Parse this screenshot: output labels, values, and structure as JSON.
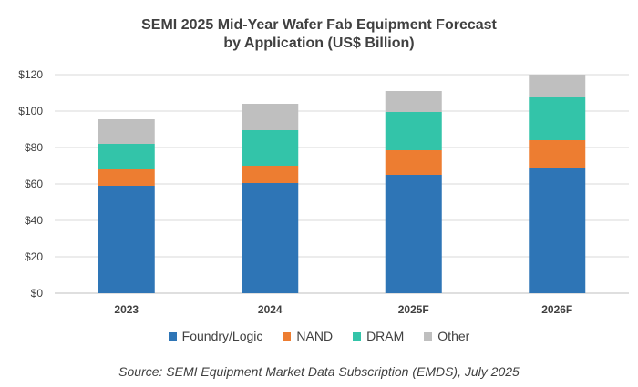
{
  "chart_data": {
    "type": "bar",
    "stacked": true,
    "title_lines": [
      "SEMI 2025 Mid-Year Wafer Fab Equipment Forecast",
      "by Application (US$ Billion)"
    ],
    "categories": [
      "2023",
      "2024",
      "2025F",
      "2026F"
    ],
    "series": [
      {
        "name": "Foundry/Logic",
        "color": "#2E75B6",
        "values": [
          59,
          60.5,
          65,
          69
        ]
      },
      {
        "name": "NAND",
        "color": "#ED7D31",
        "values": [
          9,
          9.5,
          13.5,
          15
        ]
      },
      {
        "name": "DRAM",
        "color": "#33C4A9",
        "values": [
          14,
          19.5,
          21,
          23.5
        ]
      },
      {
        "name": "Other",
        "color": "#BFBFBF",
        "values": [
          13.5,
          14.5,
          11.5,
          12.5
        ]
      }
    ],
    "ylim": [
      0,
      120
    ],
    "yticks": [
      0,
      20,
      40,
      60,
      80,
      100,
      120
    ],
    "ytick_labels": [
      "$0",
      "$20",
      "$40",
      "$60",
      "$80",
      "$100",
      "$120"
    ],
    "grid": true,
    "legend_position": "bottom",
    "source": "Source: SEMI Equipment Market Data Subscription (EMDS), July 2025"
  }
}
